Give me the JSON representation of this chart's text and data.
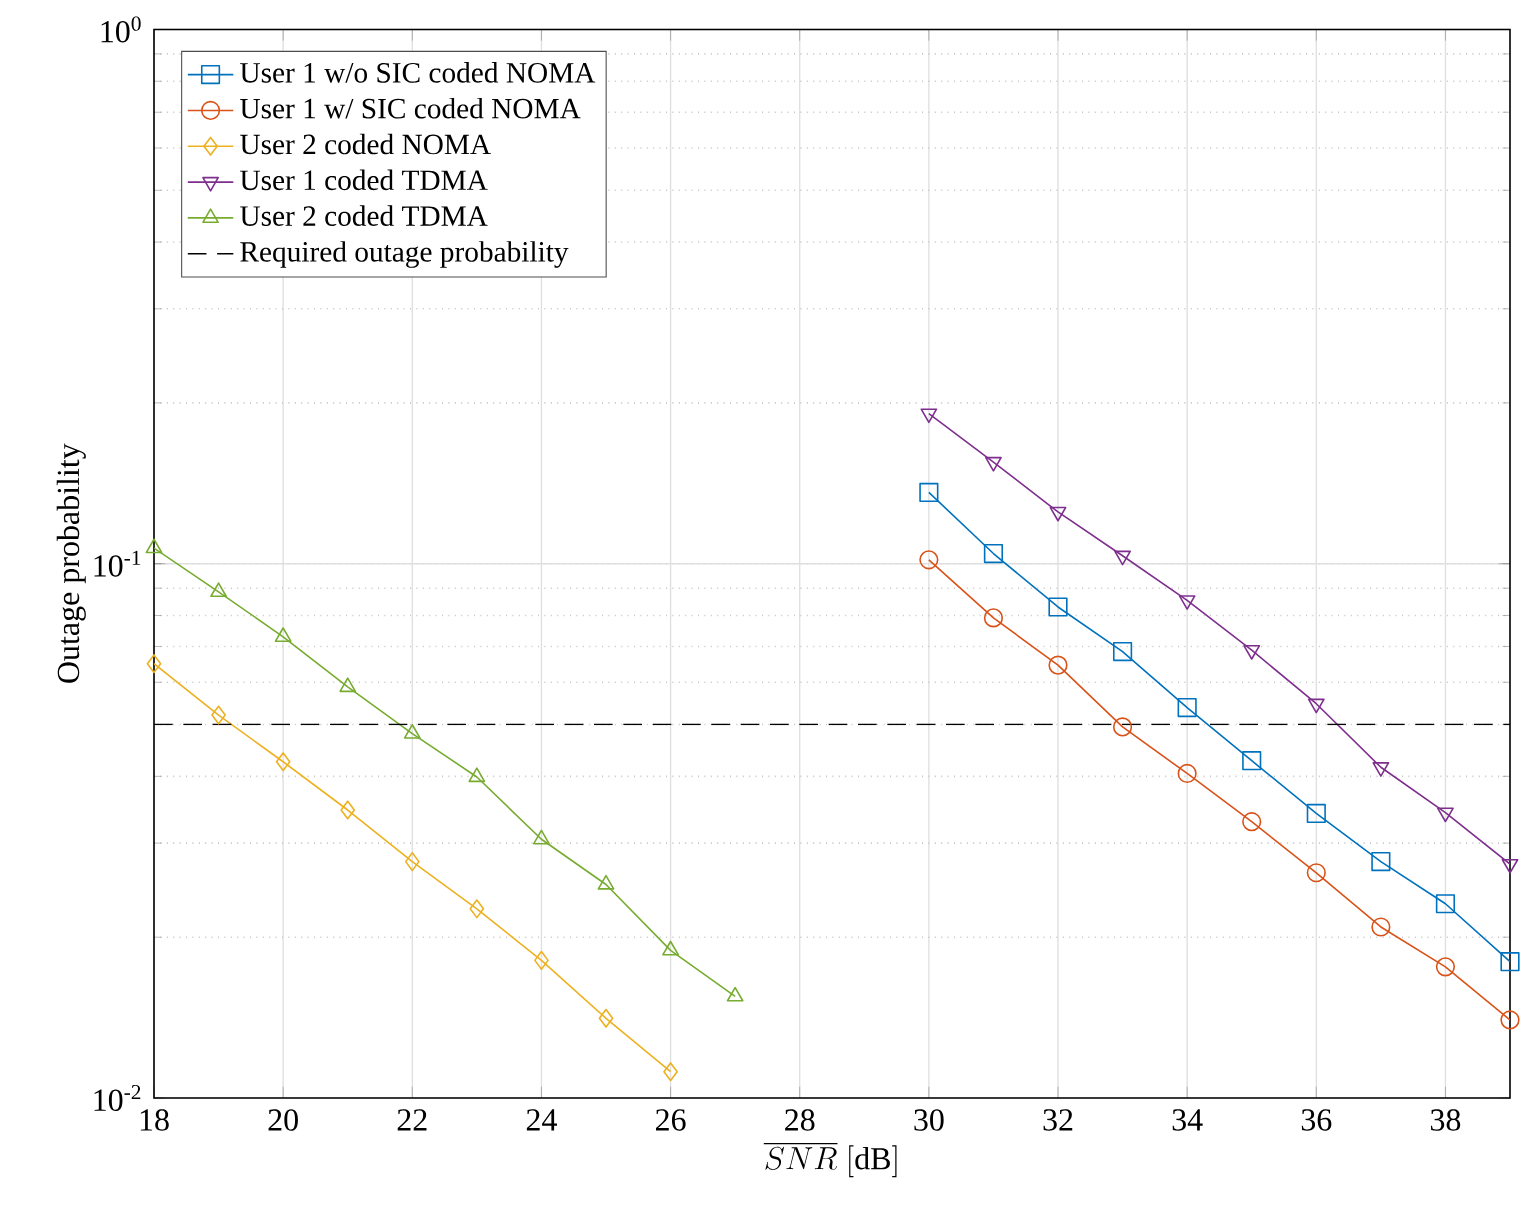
{
  "chart_data": {
    "type": "line",
    "xlabel": "\\overline{SNR}\\ \\mathrm{[dB]}",
    "ylabel": "Outage probability",
    "xlim": [
      18,
      39
    ],
    "xticks": [
      18,
      20,
      22,
      24,
      26,
      28,
      30,
      32,
      34,
      36,
      38
    ],
    "ylim": [
      0.01,
      1
    ],
    "yticks": [
      {
        "value": 0.01,
        "label": "10$^{-2}$"
      },
      {
        "value": 0.1,
        "label": "10$^{-1}$"
      },
      {
        "value": 1,
        "label": "10$^{0}$"
      }
    ],
    "log": "y",
    "grid": true,
    "legend": "top left",
    "line_style": "solid",
    "series": [
      {
        "name": "User 1 w/o SIC coded NOMA",
        "color": "#0072bd",
        "marker": "square",
        "x": [
          30,
          31,
          32,
          33,
          34,
          35,
          36,
          37,
          38,
          39
        ],
        "values": [
          0.136,
          0.1045,
          0.083,
          0.0685,
          0.0538,
          0.0428,
          0.0341,
          0.0277,
          0.0231,
          0.018
        ]
      },
      {
        "name": "User 1 w/ SIC coded NOMA",
        "color": "#d95319",
        "marker": "circle",
        "x": [
          30,
          31,
          32,
          33,
          34,
          35,
          36,
          37,
          38,
          39
        ],
        "values": [
          0.1017,
          0.0792,
          0.0646,
          0.0495,
          0.0405,
          0.0329,
          0.0264,
          0.0209,
          0.0176,
          0.014
        ]
      },
      {
        "name": "User 2 coded NOMA",
        "color": "#edb120",
        "marker": "diamond",
        "x": [
          18,
          19,
          20,
          21,
          22,
          23,
          24,
          25,
          26
        ],
        "values": [
          0.065,
          0.0521,
          0.0426,
          0.0346,
          0.0277,
          0.0226,
          0.0181,
          0.0141,
          0.0112
        ]
      },
      {
        "name": "User 1 coded TDMA",
        "color": "#7e2f8e",
        "marker": "triangle down",
        "x": [
          30,
          31,
          32,
          33,
          34,
          35,
          36,
          37,
          38,
          39
        ],
        "values": [
          0.191,
          0.155,
          0.125,
          0.1035,
          0.0854,
          0.0689,
          0.0547,
          0.0416,
          0.0342,
          0.0274
        ]
      },
      {
        "name": "User 2 coded TDMA",
        "color": "#77ac30",
        "marker": "triangle",
        "x": [
          18,
          19,
          20,
          21,
          22,
          23,
          24,
          25,
          26,
          27
        ],
        "values": [
          0.107,
          0.0886,
          0.073,
          0.0588,
          0.0481,
          0.0399,
          0.0305,
          0.0251,
          0.0189,
          0.0155
        ]
      }
    ],
    "ref_lines": [
      {
        "axis": "y",
        "value": 0.05,
        "label": "Required outage probability",
        "color": "#000000",
        "line_style": "dashed"
      }
    ]
  }
}
